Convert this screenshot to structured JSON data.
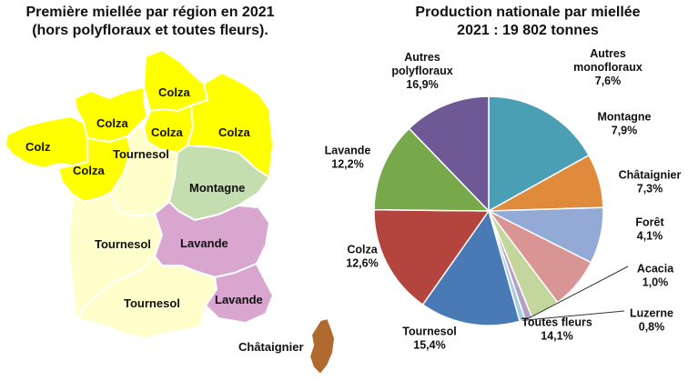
{
  "map": {
    "title_line1": "Première miellée par région en 2021",
    "title_line2": "(hors polyfloraux et toutes fleurs).",
    "legend_colors": {
      "Colza": "#ffff00",
      "Tournesol": "#ffffcc",
      "Montagne": "#c5deb0",
      "Lavande": "#d9a6cf",
      "Châtaignier": "#b06a2f"
    },
    "regions": [
      {
        "id": "bretagne",
        "label": "Colz",
        "type": "Colza"
      },
      {
        "id": "normandie",
        "label": "Colza",
        "type": "Colza"
      },
      {
        "id": "hauts-de-france",
        "label": "Colza",
        "type": "Colza"
      },
      {
        "id": "ile-de-france",
        "label": "Colza",
        "type": "Colza"
      },
      {
        "id": "grand-est",
        "label": "Colza",
        "type": "Colza"
      },
      {
        "id": "pays-de-la-loire",
        "label": "Colza",
        "type": "Colza"
      },
      {
        "id": "centre-val-de-loire",
        "label": "Tournesol",
        "type": "Tournesol"
      },
      {
        "id": "bourgogne-franche-comte",
        "label": "Montagne",
        "type": "Montagne"
      },
      {
        "id": "nouvelle-aquitaine",
        "label": "Tournesol",
        "type": "Tournesol"
      },
      {
        "id": "auvergne-rhone-alpes",
        "label": "Lavande",
        "type": "Lavande"
      },
      {
        "id": "occitanie",
        "label": "Tournesol",
        "type": "Tournesol"
      },
      {
        "id": "paca",
        "label": "Lavande",
        "type": "Lavande"
      },
      {
        "id": "corse",
        "label": "Châtaignier",
        "type": "Châtaignier"
      }
    ]
  },
  "chart_data": {
    "type": "pie",
    "title": "Production nationale par miellée",
    "subtitle": "2021 : 19 802 tonnes",
    "slices": [
      {
        "name": [
          "Autres",
          "polyfloraux"
        ],
        "value": 16.9,
        "label": "16,9%",
        "color": "#4b9fb5"
      },
      {
        "name": [
          "Autres",
          "monofloraux"
        ],
        "value": 7.6,
        "label": "7,6%",
        "color": "#e08a3c"
      },
      {
        "name": [
          "Montagne"
        ],
        "value": 7.9,
        "label": "7,9%",
        "color": "#93aad6"
      },
      {
        "name": [
          "Châtaignier"
        ],
        "value": 7.3,
        "label": "7,3%",
        "color": "#d99594"
      },
      {
        "name": [
          "Forêt"
        ],
        "value": 4.1,
        "label": "4,1%",
        "color": "#c3d69b"
      },
      {
        "name": [
          "Acacia"
        ],
        "value": 1.0,
        "label": "1,0%",
        "color": "#b4a2c6"
      },
      {
        "name": [
          "Luzerne"
        ],
        "value": 0.8,
        "label": "0,8%",
        "color": "#a5cfe0"
      },
      {
        "name": [
          "Toutes fleurs"
        ],
        "value": 14.1,
        "label": "14,1%",
        "color": "#4a7ab5"
      },
      {
        "name": [
          "Tournesol"
        ],
        "value": 15.4,
        "label": "15,4%",
        "color": "#b3443e"
      },
      {
        "name": [
          "Colza"
        ],
        "value": 12.6,
        "label": "12,6%",
        "color": "#77a84a"
      },
      {
        "name": [
          "Lavande"
        ],
        "value": 12.2,
        "label": "12,2%",
        "color": "#6f5896"
      }
    ],
    "start_direction": "top",
    "direction": "clockwise"
  }
}
